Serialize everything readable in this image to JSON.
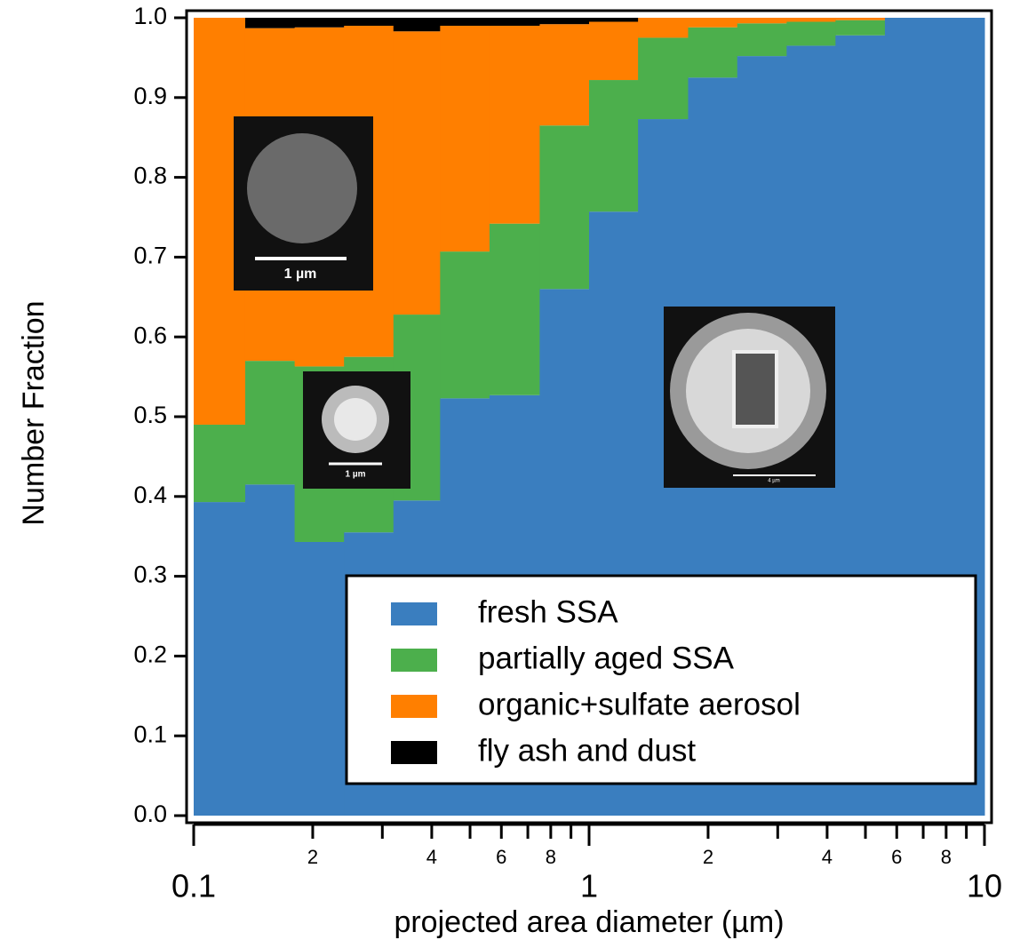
{
  "chart_data": {
    "type": "stacked-histogram",
    "x_label": "projected area diameter (µm)",
    "y_label": "Number Fraction",
    "log_x": true,
    "bins": [
      0.1,
      0.135,
      0.18,
      0.24,
      0.32,
      0.42,
      0.56,
      0.75,
      1.0,
      1.33,
      1.78,
      2.37,
      3.16,
      4.2,
      5.6,
      7.5,
      10
    ],
    "series": [
      {
        "name": "fresh SSA",
        "color": "#3a7ebf",
        "values": [
          0.393,
          0.415,
          0.343,
          0.355,
          0.395,
          0.523,
          0.527,
          0.66,
          0.757,
          0.873,
          0.925,
          0.952,
          0.965,
          0.978,
          1.0,
          1.0
        ]
      },
      {
        "name": "partially aged SSA",
        "color": "#4caf4c",
        "values": [
          0.097,
          0.155,
          0.22,
          0.22,
          0.233,
          0.184,
          0.215,
          0.205,
          0.165,
          0.102,
          0.063,
          0.041,
          0.03,
          0.019,
          0,
          0
        ]
      },
      {
        "name": "organic+sulfate aerosol",
        "color": "#ff7f00",
        "values": [
          0.51,
          0.417,
          0.425,
          0.415,
          0.355,
          0.283,
          0.248,
          0.127,
          0.073,
          0.025,
          0.012,
          0.007,
          0.005,
          0.003,
          0,
          0
        ]
      },
      {
        "name": "fly ash and dust",
        "color": "#000000",
        "values": [
          0,
          0.013,
          0.012,
          0.01,
          0.017,
          0.01,
          0.01,
          0.008,
          0.005,
          0,
          0,
          0,
          0,
          0,
          0,
          0
        ]
      }
    ],
    "xlim": [
      0.1,
      10
    ],
    "xticks": [
      {
        "value": 0.1,
        "label": "0.1"
      },
      {
        "value": 0.2,
        "label": "2"
      },
      {
        "value": 0.4,
        "label": "4"
      },
      {
        "value": 0.6,
        "label": "6"
      },
      {
        "value": 0.8,
        "label": "8"
      },
      1,
      {
        "value": 2,
        "label": "2"
      },
      {
        "value": 4,
        "label": "4"
      },
      {
        "value": 6,
        "label": "6"
      },
      {
        "value": 8,
        "label": "8"
      },
      10
    ],
    "xminorticks": [
      0.3,
      0.5,
      0.7,
      0.9,
      3,
      5,
      7,
      9
    ],
    "ylim": [
      0,
      1
    ],
    "yticks": [
      {
        "value": 0,
        "label": "0.0"
      },
      0.1,
      0.2,
      0.3,
      0.4,
      0.5,
      0.6,
      0.7,
      0.8,
      0.9,
      {
        "value": 1,
        "label": "1.0"
      }
    ],
    "legend": "lower right",
    "insets": [
      {
        "scale_label": "1 µm"
      },
      {
        "scale_label": "1 µm"
      },
      {
        "scale_label": "4 µm"
      }
    ]
  }
}
